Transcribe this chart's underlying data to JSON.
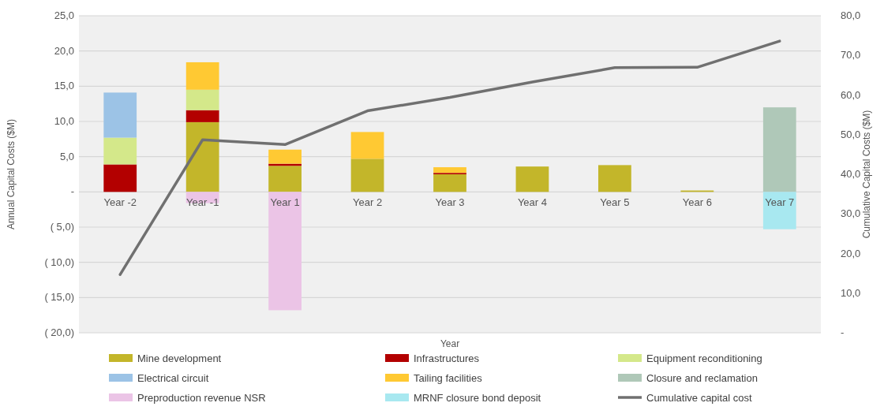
{
  "chart_data": {
    "type": "bar",
    "stacked": true,
    "xlabel": "Year",
    "ylabel": "Annual Capital Costs ($M)",
    "y2label": "Cumulative Capital Costs ($M)",
    "categories": [
      "Year -2",
      "Year -1",
      "Year 1",
      "Year 2",
      "Year 3",
      "Year 4",
      "Year 5",
      "Year 6",
      "Year 7"
    ],
    "series": [
      {
        "name": "Mine development",
        "color": "#c3b62a",
        "values": [
          null,
          9.9,
          3.7,
          4.7,
          2.5,
          3.6,
          3.8,
          0.2,
          null
        ]
      },
      {
        "name": "Infrastructures",
        "color": "#b30000",
        "values": [
          3.9,
          1.7,
          0.3,
          null,
          0.2,
          null,
          null,
          null,
          null
        ]
      },
      {
        "name": "Equipment reconditioning",
        "color": "#d4e88a",
        "values": [
          3.8,
          2.9,
          null,
          null,
          null,
          null,
          null,
          null,
          null
        ]
      },
      {
        "name": "Electrical circuit",
        "color": "#9cc3e6",
        "values": [
          6.4,
          null,
          null,
          null,
          null,
          null,
          null,
          null,
          null
        ]
      },
      {
        "name": "Tailing facilities",
        "color": "#ffc933",
        "values": [
          null,
          3.9,
          2.0,
          3.8,
          0.8,
          null,
          null,
          null,
          null
        ]
      },
      {
        "name": "Closure and reclamation",
        "color": "#afc8b8",
        "values": [
          null,
          null,
          null,
          null,
          null,
          null,
          null,
          null,
          12.0
        ]
      },
      {
        "name": "Preproduction revenue NSR",
        "color": "#ebc4e6",
        "values": [
          null,
          -1.6,
          -16.8,
          null,
          null,
          null,
          null,
          null,
          null
        ]
      },
      {
        "name": "MRNF closure bond deposit",
        "color": "#a8e8f0",
        "values": [
          null,
          null,
          null,
          null,
          null,
          null,
          null,
          null,
          -5.3
        ]
      },
      {
        "name": "Cumulative capital cost",
        "type": "line",
        "axis": "y2",
        "color": "#707070",
        "values": [
          14.7,
          48.7,
          47.5,
          56.0,
          59.4,
          63.3,
          66.9,
          67.0,
          73.6
        ]
      }
    ],
    "ylim": [
      -20,
      25
    ],
    "yticks": [
      {
        "value": -20,
        "label": "( 20,0)"
      },
      {
        "value": -15,
        "label": "( 15,0)"
      },
      {
        "value": -10,
        "label": "( 10,0)"
      },
      {
        "value": -5,
        "label": "( 5,0)"
      },
      {
        "value": 0,
        "label": "-"
      },
      {
        "value": 5,
        "label": "5,0"
      },
      {
        "value": 10,
        "label": "10,0"
      },
      {
        "value": 15,
        "label": "15,0"
      },
      {
        "value": 20,
        "label": "20,0"
      },
      {
        "value": 25,
        "label": "25,0"
      }
    ],
    "y2lim": [
      0,
      80
    ],
    "y2ticks": [
      {
        "value": 0,
        "label": "-"
      },
      {
        "value": 10,
        "label": "10,0"
      },
      {
        "value": 20,
        "label": "20,0"
      },
      {
        "value": 30,
        "label": "30,0"
      },
      {
        "value": 40,
        "label": "40,0"
      },
      {
        "value": 50,
        "label": "50,0"
      },
      {
        "value": 60,
        "label": "60,0"
      },
      {
        "value": 70,
        "label": "70,0"
      },
      {
        "value": 80,
        "label": "80,0"
      }
    ],
    "grid": "y",
    "legend": "bottom",
    "marker": "none",
    "line_style": "solid"
  }
}
